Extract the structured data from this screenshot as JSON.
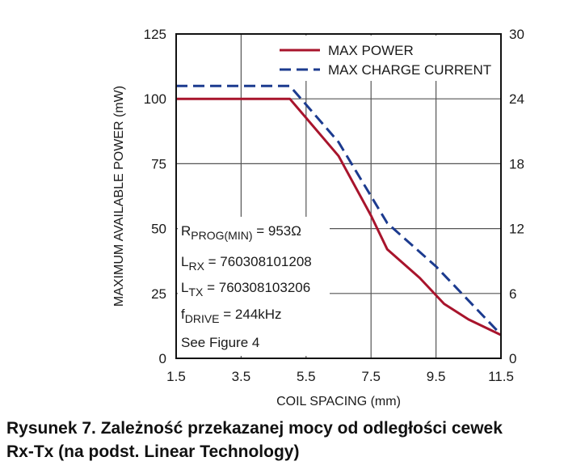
{
  "chart_data": {
    "type": "line",
    "xlabel": "COIL SPACING (mm)",
    "ylabel": "MAXIMUM AVAILABLE POWER (mW)",
    "x_ticks": [
      "1.5",
      "3.5",
      "5.5",
      "7.5",
      "9.5",
      "11.5"
    ],
    "y_ticks_left": [
      "0",
      "25",
      "50",
      "75",
      "100",
      "125"
    ],
    "y_ticks_right": [
      "0",
      "6",
      "12",
      "18",
      "24",
      "30"
    ],
    "xlim": [
      1.5,
      11.5
    ],
    "ylim_left": [
      0,
      125
    ],
    "ylim_right": [
      0,
      30
    ],
    "grid": true,
    "legend_position": "top-right",
    "series": [
      {
        "name": "MAX POWER",
        "color": "#a8142c",
        "style": "solid",
        "axis": "left",
        "points": [
          [
            1.5,
            100
          ],
          [
            5,
            100
          ],
          [
            6.5,
            78
          ],
          [
            7.5,
            55
          ],
          [
            8,
            42
          ],
          [
            9,
            31
          ],
          [
            9.75,
            21
          ],
          [
            10.5,
            15
          ],
          [
            11.5,
            9
          ]
        ]
      },
      {
        "name": "MAX CHARGE CURRENT",
        "color": "#1c3b8f",
        "style": "dashed",
        "axis": "right",
        "points": [
          [
            1.5,
            25.2
          ],
          [
            5,
            25.2
          ],
          [
            6.5,
            20
          ],
          [
            7.5,
            15
          ],
          [
            8,
            12.5
          ],
          [
            9.5,
            8.5
          ],
          [
            11.5,
            2.2
          ]
        ]
      }
    ],
    "annotations": [
      {
        "main": "R",
        "sub": "PROG(MIN)",
        "tail": " = 953Ω"
      },
      {
        "main": "L",
        "sub": "RX",
        "tail": " = 760308101208"
      },
      {
        "main": "L",
        "sub": "TX",
        "tail": " = 760308103206"
      },
      {
        "main": "f",
        "sub": "DRIVE",
        "tail": " = 244kHz"
      },
      {
        "main": "See Figure 4",
        "sub": "",
        "tail": ""
      }
    ]
  },
  "caption": {
    "line1": "Rysunek 7. Zależność przekazanej mocy od odległości cewek",
    "line2": "Rx-Tx (na podst. Linear Technology)"
  }
}
